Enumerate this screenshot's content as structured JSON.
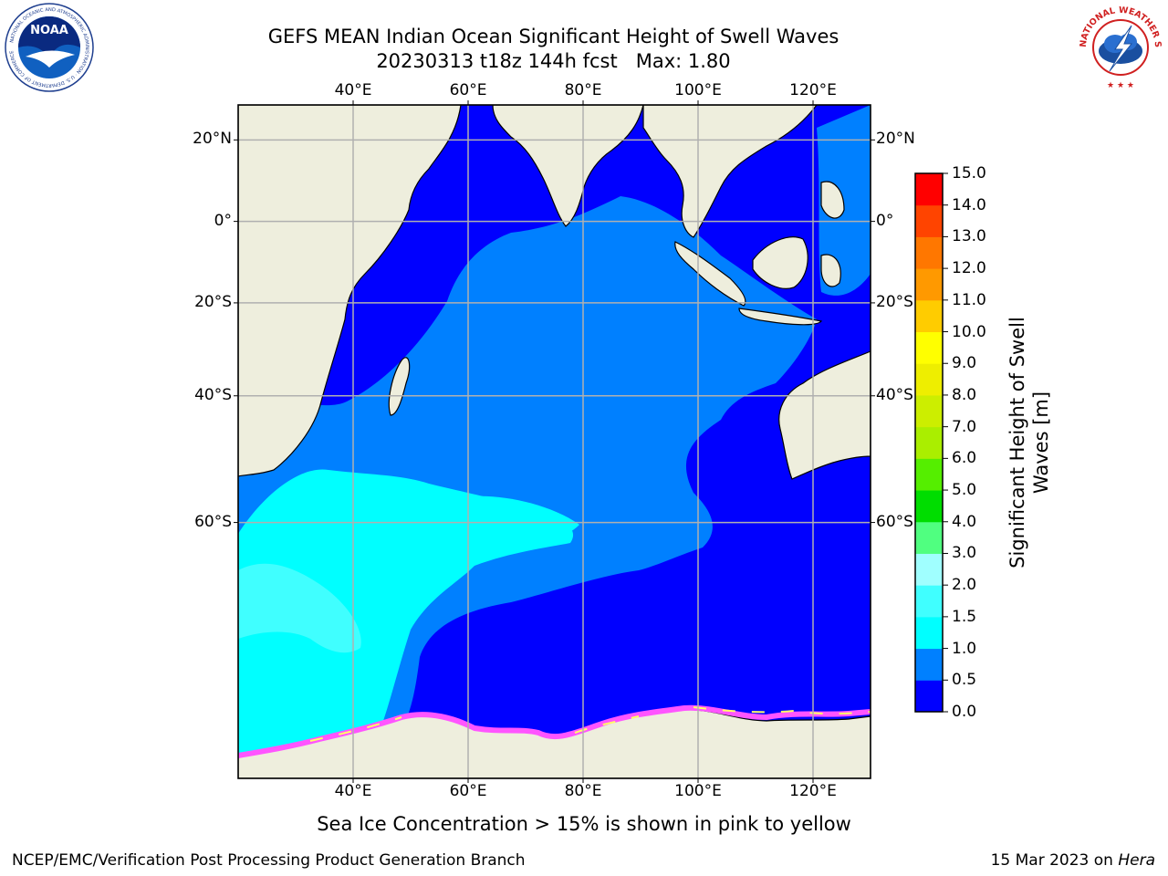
{
  "title": {
    "line1": "GEFS MEAN Indian Ocean Significant Height of Swell Waves",
    "line2": "20230313 t18z 144h fcst   Max: 1.80"
  },
  "logos": {
    "noaa": {
      "text": "NOAA",
      "ring_text": "NATIONAL OCEANIC AND ATMOSPHERIC ADMINISTRATION · U.S. DEPARTMENT OF COMMERCE"
    },
    "nws": {
      "ring_text": "NATIONAL WEATHER SERVICE"
    }
  },
  "map": {
    "lon_ticks": [
      "40°E",
      "60°E",
      "80°E",
      "100°E",
      "120°E"
    ],
    "lon_values": [
      40,
      60,
      80,
      100,
      120
    ],
    "lat_ticks": [
      "20°N",
      "0°",
      "20°S",
      "40°S",
      "60°S"
    ],
    "lat_values": [
      20,
      0,
      -20,
      -40,
      -60
    ],
    "lon_range": [
      20,
      130
    ],
    "lat_range": [
      28,
      -80
    ],
    "grid": true,
    "colors": {
      "land": "#eeeedd",
      "shallow": "#0000ff",
      "medium": "#0080ff",
      "high": "#00ffff",
      "higher": "#40ffff",
      "ice_pink": "#ff55ff",
      "ice_yellow": "#ffff66",
      "grid": "#b0b0b0"
    }
  },
  "colorbar": {
    "label_line1": "Significant Height of Swell",
    "label_line2": "Waves [m]",
    "ticks": [
      "0.0",
      "0.5",
      "1.0",
      "1.5",
      "2.0",
      "3.0",
      "4.0",
      "5.0",
      "6.0",
      "7.0",
      "8.0",
      "9.0",
      "10.0",
      "11.0",
      "12.0",
      "13.0",
      "14.0",
      "15.0"
    ],
    "colors": [
      "#0000ff",
      "#0080ff",
      "#00ffff",
      "#40ffff",
      "#a0ffff",
      "#50ff80",
      "#00dd00",
      "#55ee00",
      "#aaee00",
      "#ccee00",
      "#eeee00",
      "#ffff00",
      "#ffcc00",
      "#ff9900",
      "#ff7700",
      "#ff4400",
      "#ff0000"
    ]
  },
  "caption": "Sea Ice Concentration > 15% is shown in pink to yellow",
  "credit": "NCEP/EMC/Verification Post Processing Product Generation Branch",
  "datestamp": {
    "date": "15 Mar 2023 on ",
    "machine": "Hera"
  }
}
